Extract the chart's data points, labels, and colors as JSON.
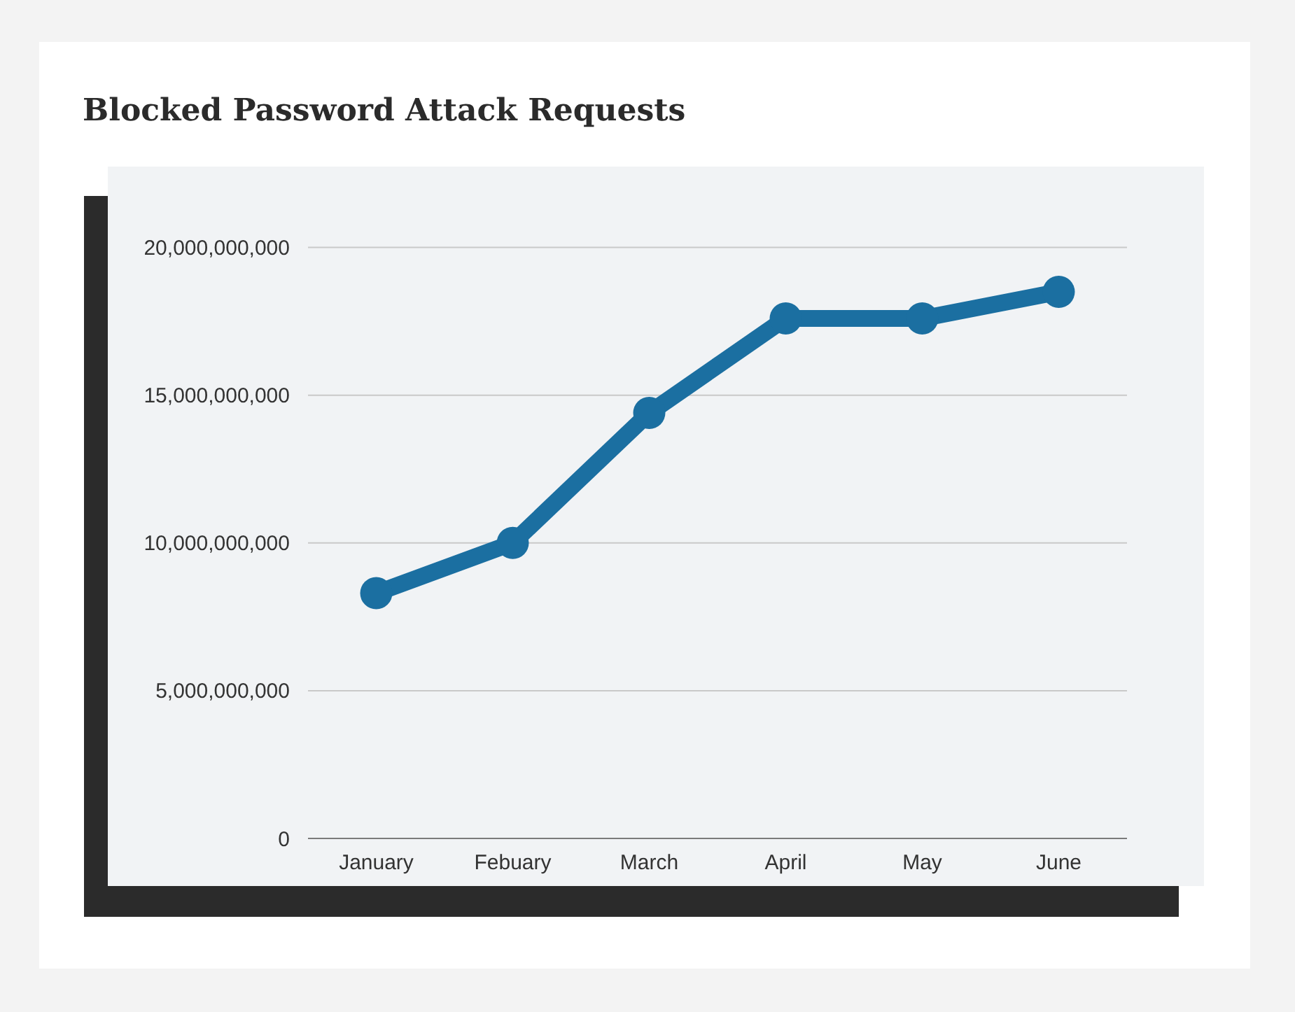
{
  "chart_data": {
    "type": "line",
    "title": "Blocked Password Attack Requests",
    "categories": [
      "January",
      "Febuary",
      "March",
      "April",
      "May",
      "June"
    ],
    "series": [
      {
        "color": "#1b6fa1",
        "values": [
          8300000000,
          10000000000,
          14400000000,
          17600000000,
          17600000000,
          18500000000
        ]
      }
    ],
    "ylim": [
      0,
      20000000000
    ],
    "yticks": [
      0,
      {
        "value": 5000000000,
        "label": "5,000,000,000"
      },
      {
        "value": 10000000000,
        "label": "10,000,000,000"
      },
      {
        "value": 15000000000,
        "label": "15,000,000,000"
      },
      {
        "value": 20000000000,
        "label": "20,000,000,000"
      }
    ],
    "grid": "y",
    "marker": "circle",
    "line_style": "solid"
  }
}
